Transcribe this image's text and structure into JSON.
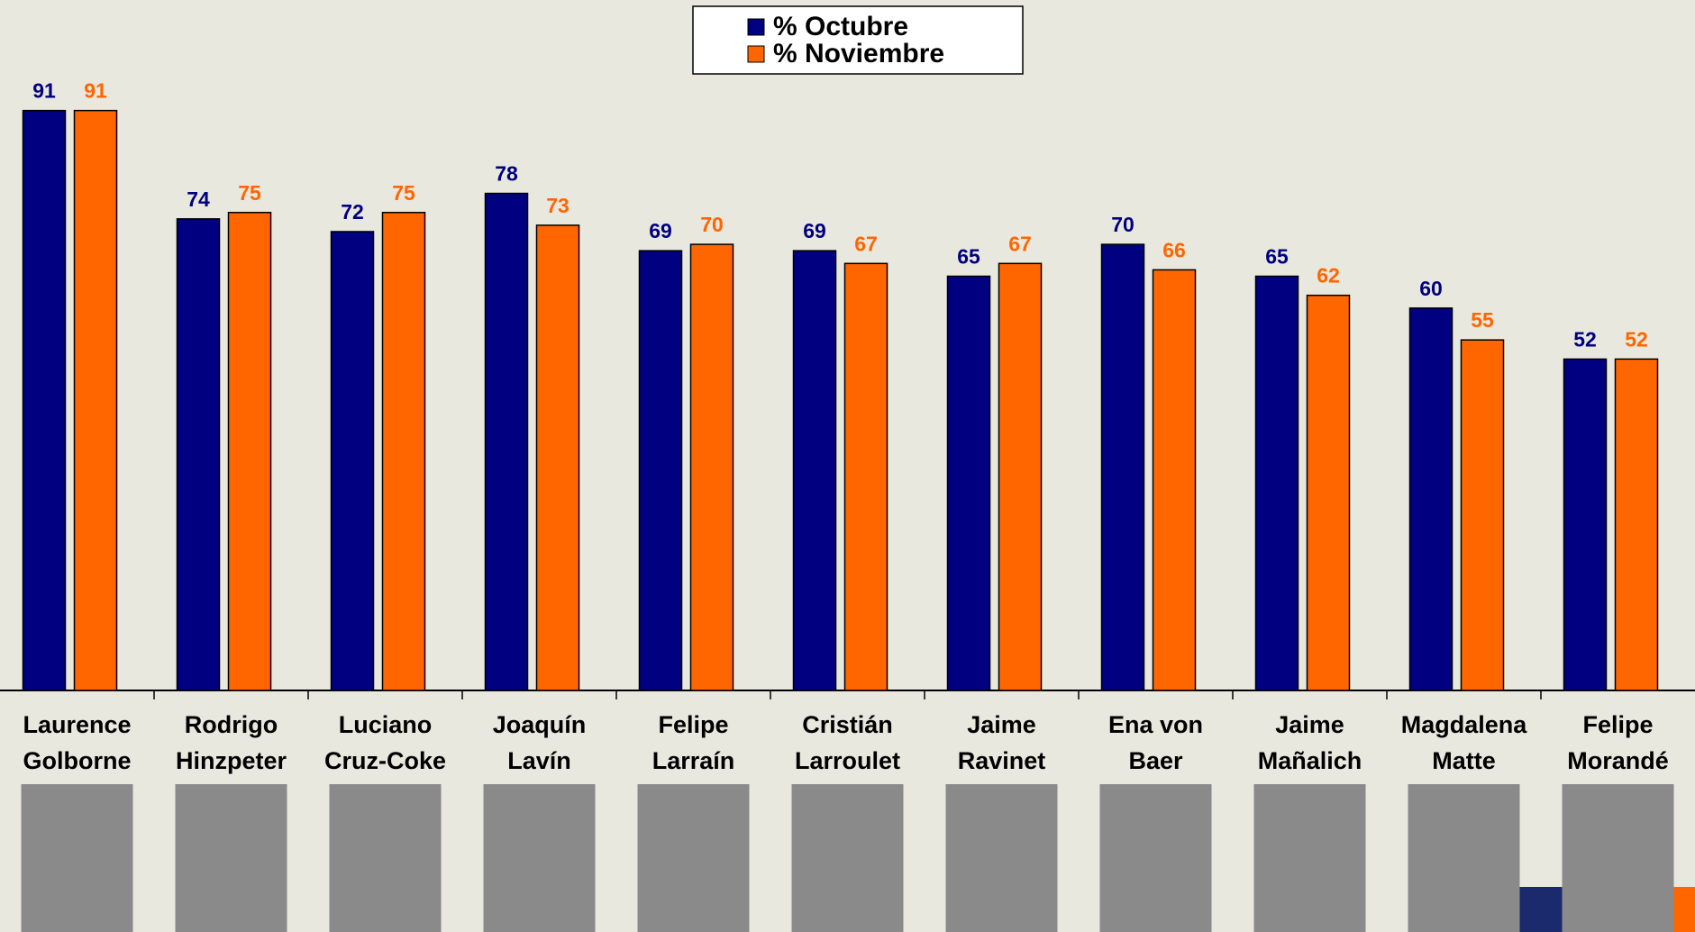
{
  "chart_data": {
    "type": "bar",
    "categories": [
      [
        "Laurence",
        "Golborne"
      ],
      [
        "Rodrigo",
        "Hinzpeter"
      ],
      [
        "Luciano",
        "Cruz-Coke"
      ],
      [
        "Joaquín",
        "Lavín"
      ],
      [
        "Felipe",
        "Larraín"
      ],
      [
        "Cristián",
        "Larroulet"
      ],
      [
        "Jaime",
        "Ravinet"
      ],
      [
        "Ena von",
        "Baer"
      ],
      [
        "Jaime",
        "Mañalich"
      ],
      [
        "Magdalena",
        "Matte"
      ],
      [
        "Felipe",
        "Morandé"
      ]
    ],
    "series": [
      {
        "name": "% Octubre",
        "color": "#000080",
        "values": [
          91,
          74,
          72,
          78,
          69,
          69,
          65,
          70,
          65,
          60,
          52
        ]
      },
      {
        "name": "% Noviembre",
        "color": "#ff6600",
        "values": [
          91,
          75,
          75,
          73,
          70,
          67,
          67,
          66,
          62,
          55,
          52
        ]
      }
    ],
    "ylim": [
      0,
      100
    ],
    "legend": "top"
  }
}
